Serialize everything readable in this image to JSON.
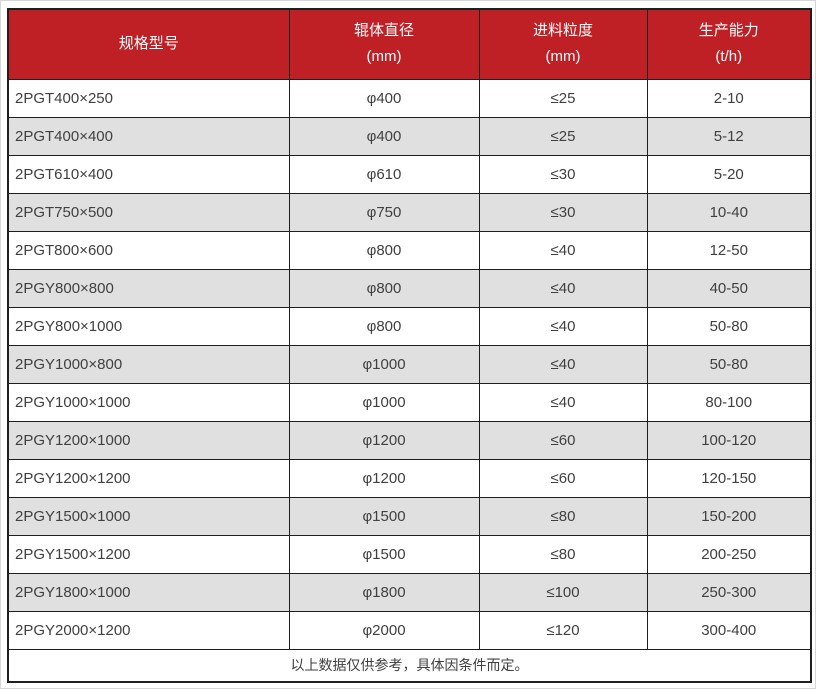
{
  "chart_data": {
    "type": "table",
    "columns": [
      {
        "label": "规格型号",
        "unit": ""
      },
      {
        "label": "辊体直径",
        "unit": "(mm)"
      },
      {
        "label": "进料粒度",
        "unit": "(mm)"
      },
      {
        "label": "生产能力",
        "unit": "(t/h)"
      }
    ],
    "rows": [
      [
        "2PGT400×250",
        "φ400",
        "≤25",
        "2-10"
      ],
      [
        "2PGT400×400",
        "φ400",
        "≤25",
        "5-12"
      ],
      [
        "2PGT610×400",
        "φ610",
        "≤30",
        "5-20"
      ],
      [
        "2PGT750×500",
        "φ750",
        "≤30",
        "10-40"
      ],
      [
        "2PGT800×600",
        "φ800",
        "≤40",
        "12-50"
      ],
      [
        "2PGY800×800",
        "φ800",
        "≤40",
        "40-50"
      ],
      [
        "2PGY800×1000",
        "φ800",
        "≤40",
        "50-80"
      ],
      [
        "2PGY1000×800",
        "φ1000",
        "≤40",
        "50-80"
      ],
      [
        "2PGY1000×1000",
        "φ1000",
        "≤40",
        "80-100"
      ],
      [
        "2PGY1200×1000",
        "φ1200",
        "≤60",
        "100-120"
      ],
      [
        "2PGY1200×1200",
        "φ1200",
        "≤60",
        "120-150"
      ],
      [
        "2PGY1500×1000",
        "φ1500",
        "≤80",
        "150-200"
      ],
      [
        "2PGY1500×1200",
        "φ1500",
        "≤80",
        "200-250"
      ],
      [
        "2PGY1800×1000",
        "φ1800",
        "≤100",
        "250-300"
      ],
      [
        "2PGY2000×1200",
        "φ2000",
        "≤120",
        "300-400"
      ]
    ],
    "footnote": "以上数据仅供参考，具体因条件而定。",
    "legend_position": "none",
    "grid": true
  },
  "colors": {
    "header_bg": "#BF2025",
    "header_text": "#FFFFFF",
    "stripe_bg": "#E0E0E0",
    "row_bg": "#FFFFFF",
    "body_text": "#404040",
    "border": "#1F1F1F"
  }
}
